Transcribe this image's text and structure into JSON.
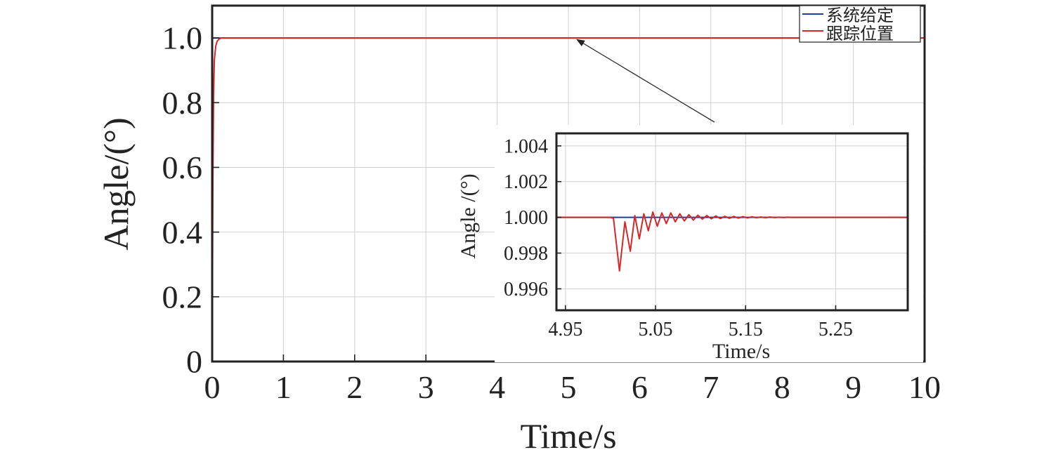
{
  "chart_data": [
    {
      "id": "main",
      "type": "line",
      "xlabel": "Time/s",
      "ylabel": "Angle/(°)",
      "xlim": [
        0,
        10
      ],
      "ylim": [
        0,
        1.1
      ],
      "xticks": [
        "0",
        "1",
        "2",
        "3",
        "4",
        "5",
        "6",
        "7",
        "8",
        "9",
        "10"
      ],
      "xtick_values": [
        0,
        1,
        2,
        3,
        4,
        5,
        6,
        7,
        8,
        9,
        10
      ],
      "yticks": [
        "0",
        "0.2",
        "0.4",
        "0.6",
        "0.8",
        "1.0"
      ],
      "ytick_values": [
        0,
        0.2,
        0.4,
        0.6,
        0.8,
        1.0
      ],
      "grid": true,
      "legend": "top-right",
      "series": [
        {
          "name": "系统给定",
          "color": "#1f3f99",
          "x": [
            0,
            10
          ],
          "y": [
            1.0,
            1.0
          ]
        },
        {
          "name": "跟踪位置",
          "color": "#d62728",
          "x": [
            0,
            0.01,
            0.02,
            0.03,
            0.05,
            0.07,
            0.1,
            0.13,
            0.16,
            0.2,
            0.3,
            10
          ],
          "y": [
            0,
            0.55,
            0.82,
            0.93,
            0.975,
            0.99,
            0.997,
            1.0,
            1.0,
            1.0,
            1.0,
            1.0
          ]
        }
      ],
      "annotations": [
        {
          "type": "arrow",
          "from": [
            7.05,
            0.74
          ],
          "to": [
            5.12,
            0.995
          ]
        }
      ]
    },
    {
      "id": "inset",
      "type": "line",
      "xlabel": "Time/s",
      "ylabel": "Angle /(°)",
      "xlim": [
        4.94,
        5.33
      ],
      "ylim": [
        0.9948,
        1.0047
      ],
      "xticks": [
        "4.95",
        "5.05",
        "5.15",
        "5.25"
      ],
      "xtick_values": [
        4.95,
        5.05,
        5.15,
        5.25
      ],
      "yticks": [
        "0.996",
        "0.998",
        "1.000",
        "1.002",
        "1.004"
      ],
      "ytick_values": [
        0.996,
        0.998,
        1.0,
        1.002,
        1.004
      ],
      "grid": true,
      "series": [
        {
          "name": "系统给定",
          "color": "#1f3f99",
          "x": [
            4.94,
            5.33
          ],
          "y": [
            1.0,
            1.0
          ]
        },
        {
          "name": "跟踪位置",
          "color": "#d62728",
          "x": [
            4.94,
            5.0,
            5.0033,
            5.01,
            5.016,
            5.022,
            5.027,
            5.032,
            5.037,
            5.042,
            5.047,
            5.052,
            5.057,
            5.062,
            5.067,
            5.072,
            5.077,
            5.082,
            5.087,
            5.092,
            5.097,
            5.102,
            5.107,
            5.112,
            5.117,
            5.122,
            5.127,
            5.132,
            5.137,
            5.142,
            5.147,
            5.152,
            5.157,
            5.162,
            5.167,
            5.172,
            5.177,
            5.182,
            5.187,
            5.192,
            5.197,
            5.202,
            5.207,
            5.212,
            5.217,
            5.222,
            5.227,
            5.232,
            5.237,
            5.242,
            5.247,
            5.33
          ],
          "y": [
            1.0,
            1.0,
            0.99995,
            0.997,
            0.99975,
            0.9981,
            1.0001,
            0.9988,
            1.0002,
            0.99925,
            1.0003,
            0.9995,
            1.00025,
            0.99965,
            1.00025,
            0.99975,
            1.0002,
            0.9998,
            1.00015,
            0.99985,
            1.00012,
            0.9999,
            1.0001,
            0.99992,
            1.00008,
            0.99993,
            1.00006,
            0.99995,
            1.00005,
            0.99996,
            1.00004,
            0.99997,
            1.00003,
            0.99998,
            1.00002,
            0.99998,
            1.00002,
            0.99999,
            1.00001,
            0.99999,
            1.00001,
            1.0,
            1.0,
            1.0,
            1.0,
            1.0,
            1.0,
            1.0,
            1.0,
            1.0,
            1.0,
            1.0
          ]
        }
      ]
    }
  ]
}
